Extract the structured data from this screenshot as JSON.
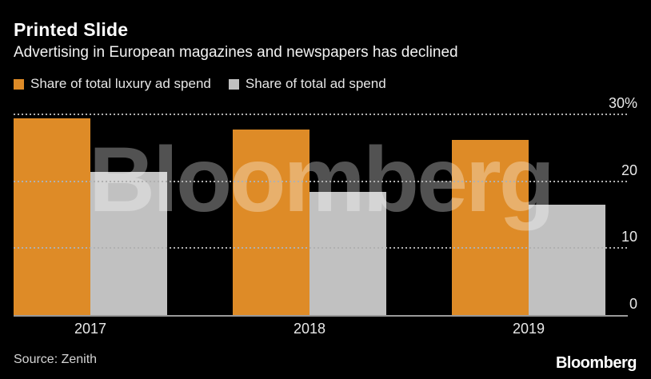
{
  "header": {
    "title": "Printed Slide",
    "subtitle": "Advertising in European magazines and newspapers has declined"
  },
  "legend": {
    "items": [
      {
        "label": "Share of total luxury ad spend",
        "color": "#DE8B27"
      },
      {
        "label": "Share of total ad spend",
        "color": "#C1C1C1"
      }
    ]
  },
  "chart_data": {
    "type": "bar",
    "title": "Printed Slide",
    "subtitle": "Advertising in European magazines and newspapers has declined",
    "categories": [
      "2017",
      "2018",
      "2019"
    ],
    "series": [
      {
        "name": "Share of total luxury ad spend",
        "color": "#DE8B27",
        "values": [
          29.4,
          27.7,
          26.2
        ]
      },
      {
        "name": "Share of total ad spend",
        "color": "#C1C1C1",
        "values": [
          21.4,
          18.4,
          16.5
        ]
      }
    ],
    "ylim": [
      0,
      30
    ],
    "yticks": [
      {
        "value": 0,
        "label": "0"
      },
      {
        "value": 10,
        "label": "10"
      },
      {
        "value": 20,
        "label": "20"
      },
      {
        "value": 30,
        "label": "30%"
      }
    ],
    "grid": "dotted horizontal gridlines at 10/20/30, drawn over bars",
    "legend_position": "top-left",
    "watermark": "Bloomberg",
    "background": "#000000"
  },
  "footer": {
    "source": "Source: Zenith",
    "brand": "Bloomberg"
  }
}
